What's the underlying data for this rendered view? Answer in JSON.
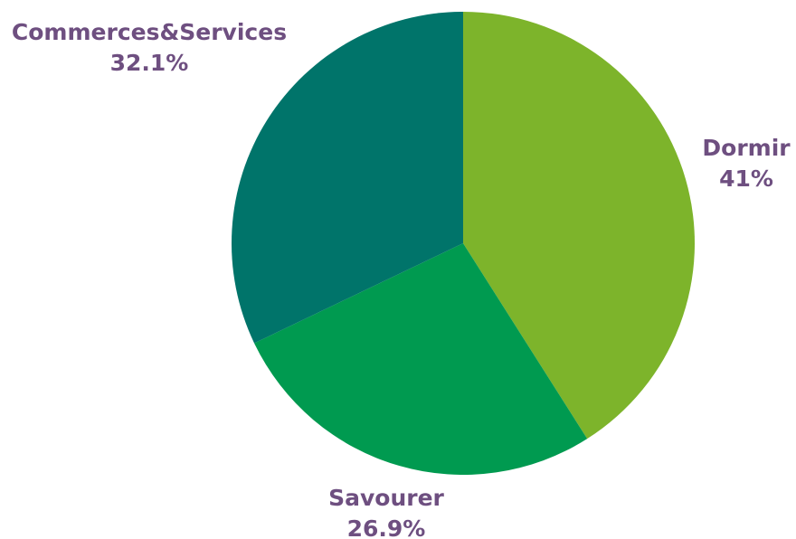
{
  "chart_data": {
    "type": "pie",
    "title": "",
    "categories": [
      "Dormir",
      "Savourer",
      "Commerces&Services"
    ],
    "values": [
      41,
      26.9,
      32.1
    ],
    "value_labels": [
      "41%",
      "26.9%",
      "32.1%"
    ],
    "colors": [
      "#7db42b",
      "#009a50",
      "#00746a"
    ],
    "label_color": "#6e4f80",
    "start_angle_deg": 0,
    "direction": "clockwise",
    "legend": "none"
  }
}
